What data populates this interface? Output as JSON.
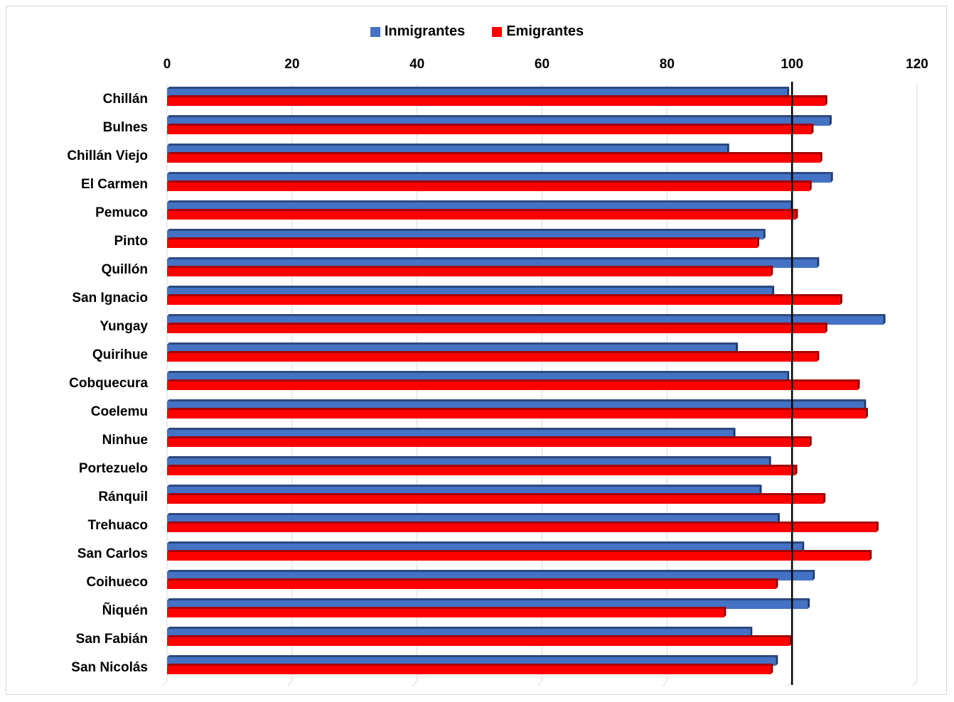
{
  "chart_data": {
    "type": "bar",
    "orientation": "horizontal",
    "categories": [
      "Chillán",
      "Bulnes",
      "Chillán Viejo",
      "El Carmen",
      "Pemuco",
      "Pinto",
      "Quillón",
      "San Ignacio",
      "Yungay",
      "Quirihue",
      "Cobquecura",
      "Coelemu",
      "Ninhue",
      "Portezuelo",
      "Ránquil",
      "Trehuaco",
      "San Carlos",
      "Coihueco",
      "Ñiquén",
      "San Fabián",
      "San Nicolás"
    ],
    "series": [
      {
        "name": "Inmigrantes",
        "color": "#4472C4",
        "values": [
          99.2,
          106.0,
          89.6,
          106.2,
          99.8,
          95.4,
          104.0,
          96.8,
          114.6,
          91.0,
          99.2,
          111.5,
          90.6,
          96.3,
          94.8,
          97.7,
          101.6,
          103.3,
          102.5,
          93.3,
          97.4
        ]
      },
      {
        "name": "Emigrantes",
        "color": "#FF0000",
        "values": [
          105.3,
          103.1,
          104.5,
          102.8,
          100.6,
          94.4,
          96.6,
          107.7,
          105.3,
          104.0,
          110.5,
          111.8,
          102.8,
          100.5,
          105.0,
          113.5,
          112.4,
          97.4,
          89.1,
          99.6,
          96.6
        ]
      }
    ],
    "xlim": [
      0,
      120
    ],
    "xticks": [
      "0",
      "20",
      "40",
      "60",
      "80",
      "100",
      "120"
    ],
    "tick_values": [
      0,
      20,
      40,
      60,
      80,
      100,
      120
    ],
    "reference_line": 100,
    "x_axis_position": "top",
    "legend_position": "top",
    "grid": true,
    "title": "",
    "xlabel": "",
    "ylabel": ""
  }
}
